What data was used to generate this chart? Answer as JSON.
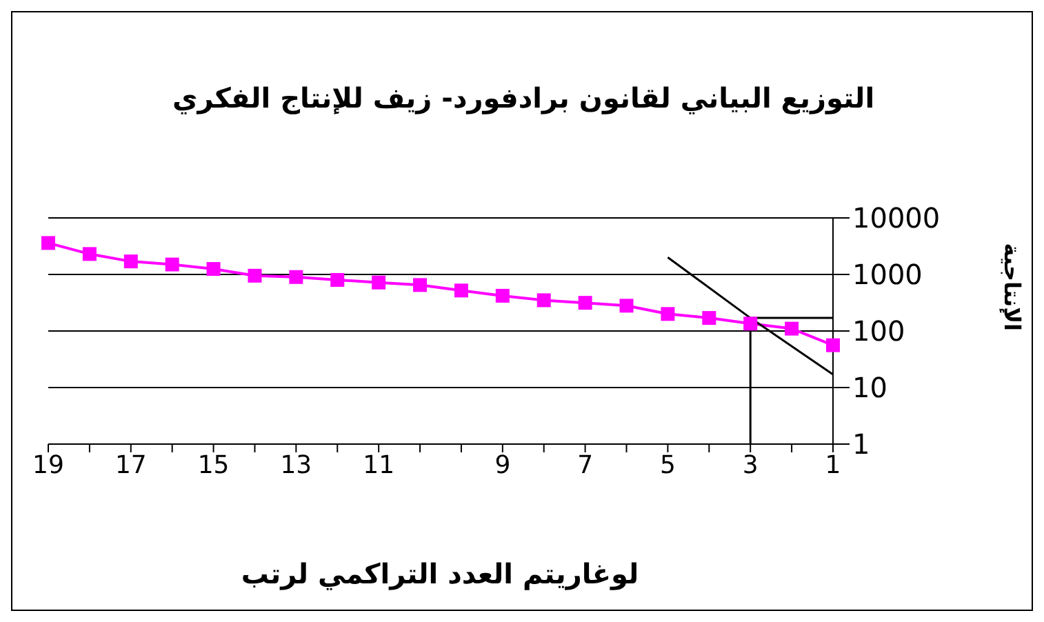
{
  "chart_data": {
    "type": "line",
    "title": "التوزيع البياني لقانون برادفورد- زيف للإنتاج الفكري",
    "xlabel": "لوغاريتم العدد التراكمي لرتب",
    "ylabel": "الإنتاجية",
    "categories": [
      "19",
      null,
      "17",
      null,
      "15",
      null,
      "13",
      null,
      "11",
      null,
      null,
      "9",
      null,
      "7",
      null,
      "5",
      null,
      "3",
      null,
      "1"
    ],
    "series": [
      {
        "color": "#ff00ff",
        "marker": "square",
        "values": [
          3600,
          2300,
          1700,
          1500,
          1250,
          950,
          900,
          800,
          720,
          650,
          520,
          420,
          350,
          315,
          280,
          200,
          170,
          135,
          110,
          56
        ]
      },
      {
        "color": "#000000",
        "marker": "none",
        "x": [
          "5",
          "3",
          "1"
        ],
        "values": [
          2000,
          170,
          17
        ]
      }
    ],
    "ref_lines": [
      {
        "axis": "y",
        "value": 170,
        "color": "#000000"
      },
      {
        "axis": "x",
        "value": "3",
        "color": "#000000"
      }
    ],
    "log": "y",
    "ylim": [
      1,
      10000
    ],
    "yticks": [
      1,
      10,
      100,
      1000,
      10000
    ],
    "grid": "y",
    "legend": false
  }
}
